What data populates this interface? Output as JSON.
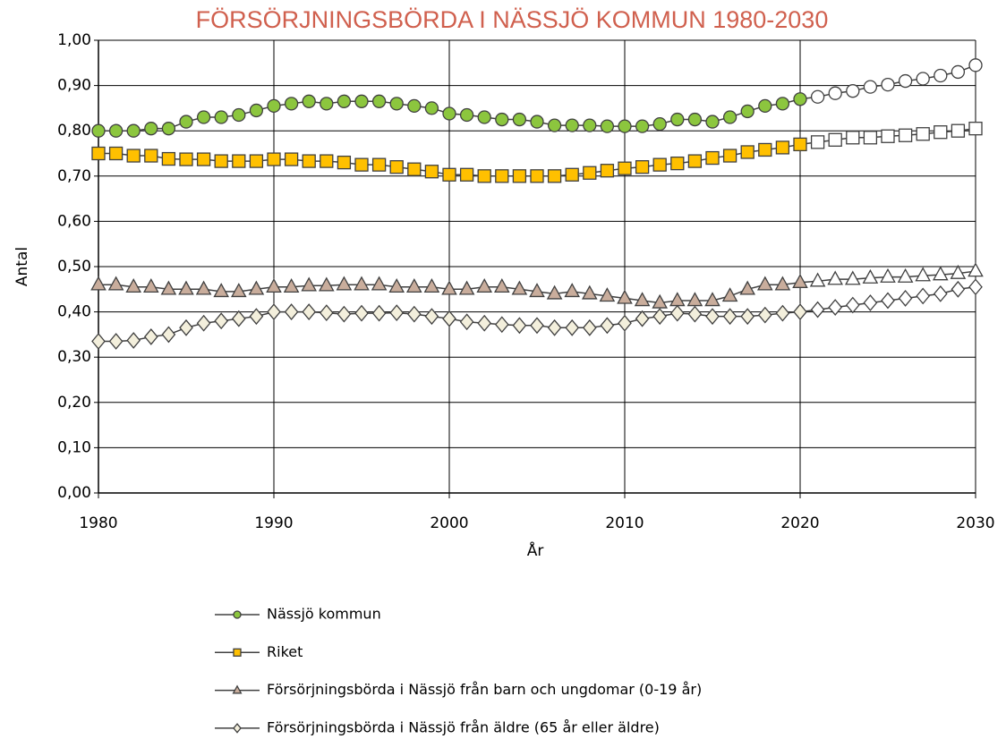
{
  "chart_data": {
    "type": "line",
    "title": "FÖRSÖRJNINGSBÖRDA I NÄSSJÖ KOMMUN 1980-2030",
    "xlabel": "År",
    "ylabel": "Antal",
    "x": [
      1980,
      1981,
      1982,
      1983,
      1984,
      1985,
      1986,
      1987,
      1988,
      1989,
      1990,
      1991,
      1992,
      1993,
      1994,
      1995,
      1996,
      1997,
      1998,
      1999,
      2000,
      2001,
      2002,
      2003,
      2004,
      2005,
      2006,
      2007,
      2008,
      2009,
      2010,
      2011,
      2012,
      2013,
      2014,
      2015,
      2016,
      2017,
      2018,
      2019,
      2020,
      2021,
      2022,
      2023,
      2024,
      2025,
      2026,
      2027,
      2028,
      2029,
      2030
    ],
    "xlim": [
      1980,
      2030
    ],
    "xticks": [
      1980,
      1990,
      2000,
      2010,
      2020,
      2030
    ],
    "ylim": [
      0,
      1
    ],
    "yticks": [
      {
        "value": 0,
        "label": "0,00"
      },
      {
        "value": 0.1,
        "label": "0,10"
      },
      {
        "value": 0.2,
        "label": "0,20"
      },
      {
        "value": 0.3,
        "label": "0,30"
      },
      {
        "value": 0.4,
        "label": "0,40"
      },
      {
        "value": 0.5,
        "label": "0,50"
      },
      {
        "value": 0.6,
        "label": "0,60"
      },
      {
        "value": 0.7,
        "label": "0,70"
      },
      {
        "value": 0.8,
        "label": "0,80"
      },
      {
        "value": 0.9,
        "label": "0,90"
      },
      {
        "value": 1,
        "label": "1,00"
      }
    ],
    "grid": true,
    "line_color": "#404040",
    "forecast": {
      "after": 2020,
      "fill": "#ffffff"
    },
    "series": [
      {
        "name": "Nässjö kommun",
        "color": "#8cc63e",
        "marker": "circle",
        "values": [
          0.8,
          0.8,
          0.8,
          0.805,
          0.805,
          0.82,
          0.83,
          0.83,
          0.835,
          0.845,
          0.855,
          0.86,
          0.865,
          0.86,
          0.865,
          0.865,
          0.865,
          0.86,
          0.855,
          0.85,
          0.838,
          0.835,
          0.83,
          0.825,
          0.825,
          0.82,
          0.812,
          0.812,
          0.812,
          0.81,
          0.81,
          0.81,
          0.815,
          0.825,
          0.825,
          0.82,
          0.83,
          0.843,
          0.855,
          0.86,
          0.87,
          0.875,
          0.883,
          0.888,
          0.897,
          0.902,
          0.91,
          0.915,
          0.922,
          0.93,
          0.945
        ]
      },
      {
        "name": "Riket",
        "color": "#ffc000",
        "marker": "square",
        "values": [
          0.75,
          0.75,
          0.745,
          0.745,
          0.738,
          0.737,
          0.737,
          0.733,
          0.733,
          0.733,
          0.737,
          0.737,
          0.733,
          0.733,
          0.73,
          0.725,
          0.725,
          0.72,
          0.715,
          0.71,
          0.703,
          0.703,
          0.7,
          0.7,
          0.7,
          0.7,
          0.7,
          0.703,
          0.707,
          0.712,
          0.717,
          0.72,
          0.725,
          0.728,
          0.733,
          0.74,
          0.745,
          0.753,
          0.758,
          0.763,
          0.77,
          0.775,
          0.78,
          0.785,
          0.785,
          0.788,
          0.79,
          0.793,
          0.797,
          0.8,
          0.805
        ]
      },
      {
        "name": "Försörjningsbörda i Nässjö från barn och ungdomar (0-19 år)",
        "color": "#c9ad9c",
        "marker": "triangle",
        "values": [
          0.46,
          0.46,
          0.455,
          0.455,
          0.45,
          0.45,
          0.45,
          0.445,
          0.445,
          0.45,
          0.455,
          0.455,
          0.458,
          0.458,
          0.46,
          0.46,
          0.46,
          0.455,
          0.455,
          0.455,
          0.45,
          0.45,
          0.455,
          0.455,
          0.45,
          0.445,
          0.44,
          0.445,
          0.44,
          0.435,
          0.43,
          0.425,
          0.42,
          0.425,
          0.425,
          0.425,
          0.435,
          0.45,
          0.46,
          0.46,
          0.465,
          0.468,
          0.472,
          0.472,
          0.475,
          0.477,
          0.477,
          0.48,
          0.482,
          0.485,
          0.49
        ]
      },
      {
        "name": "Försörjningsbörda i Nässjö från äldre (65 år eller äldre)",
        "color": "#f3efdc",
        "marker": "diamond",
        "values": [
          0.335,
          0.335,
          0.337,
          0.345,
          0.35,
          0.365,
          0.375,
          0.38,
          0.385,
          0.39,
          0.4,
          0.4,
          0.4,
          0.398,
          0.395,
          0.397,
          0.397,
          0.398,
          0.395,
          0.39,
          0.385,
          0.378,
          0.375,
          0.372,
          0.37,
          0.37,
          0.365,
          0.365,
          0.365,
          0.37,
          0.375,
          0.385,
          0.39,
          0.397,
          0.395,
          0.39,
          0.39,
          0.39,
          0.393,
          0.397,
          0.4,
          0.405,
          0.41,
          0.415,
          0.42,
          0.425,
          0.43,
          0.435,
          0.44,
          0.45,
          0.455
        ]
      }
    ]
  }
}
